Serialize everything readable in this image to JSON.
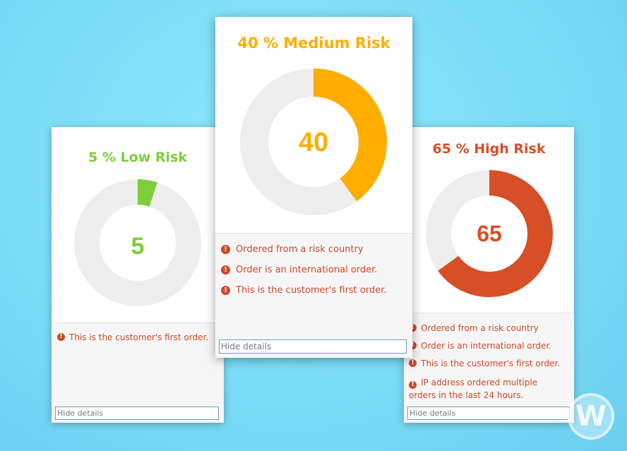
{
  "cards": {
    "low": {
      "title": "5 % Low Risk",
      "score": "5",
      "percent": 5,
      "color": "#7ccf3a",
      "reasons": [
        "This is the customer's first order."
      ],
      "hide_label": "Hide details"
    },
    "medium": {
      "title": "40 % Medium Risk",
      "score": "40",
      "percent": 40,
      "color": "#ffae00",
      "reasons": [
        "Ordered from a risk country",
        "Order is an international order.",
        "This is the customer's first order."
      ],
      "hide_label": "Hide details"
    },
    "high": {
      "title": "65 % High Risk",
      "score": "65",
      "percent": 65,
      "color": "#d74f26",
      "reasons": [
        "Ordered from a risk country",
        "Order is an international order.",
        "This is the customer's first order.",
        "IP address ordered multiple orders in the last 24 hours."
      ],
      "hide_label": "Hide details"
    }
  },
  "icons": {
    "reason_icon": "exclamation-circle-icon",
    "watermark": "w-logo-icon"
  },
  "watermark_letter": "W",
  "track_color": "#eeeeee",
  "reason_color": "#cd4a2a"
}
